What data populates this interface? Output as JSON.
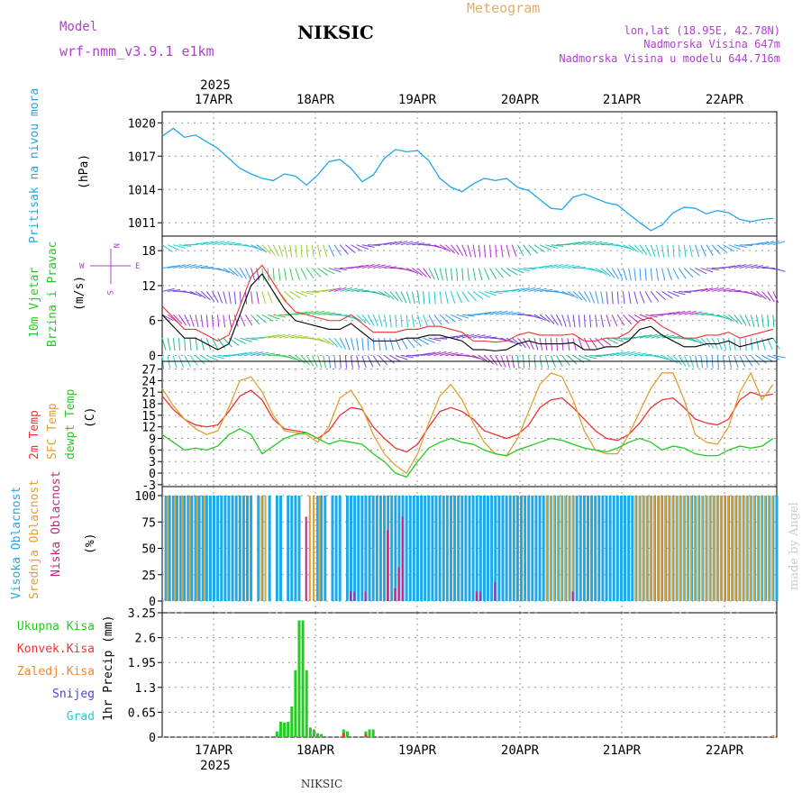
{
  "header": {
    "model_label": "Model",
    "model_name": "wrf-nmm_v3.9.1 e1km",
    "station": "NIKSIC",
    "chart_title": "Meteogram",
    "coords": "lon,lat (18.95E, 42.78N)",
    "elevation": "Nadmorska Visina 647m",
    "model_elevation": "Nadmorska Visina u modelu 644.716m",
    "footer_station": "NIKSIC",
    "watermark": "made by Angel"
  },
  "colors": {
    "pressure": "#1ea8e8",
    "wind_green": "#22cc22",
    "t2m": "#ee3333",
    "tsfc": "#e0a030",
    "dewpt": "#22cc22",
    "cloud_high": "#1ea8e8",
    "cloud_mid": "#e0a030",
    "cloud_low": "#cc2288",
    "precip_total": "#22cc22",
    "precip_conv": "#ee3333",
    "precip_frozen": "#ee8833",
    "snow": "#4444ee",
    "hail": "#22cccc",
    "model_purple": "#b040d0"
  },
  "time_axis": {
    "year": "2025",
    "days": [
      "17APR",
      "18APR",
      "19APR",
      "20APR",
      "21APR",
      "22APR"
    ]
  },
  "panels": {
    "pressure": {
      "label": "Pritisak na nivou mora",
      "unit": "(hPa)",
      "ticks": [
        "1020",
        "1017",
        "1014",
        "1011"
      ]
    },
    "wind": {
      "label1": "10m Vjetar",
      "label2": "Brzina i Pravac",
      "unit": "(m/s)",
      "ticks": [
        "18",
        "12",
        "6",
        "0"
      ],
      "compass": {
        "n": "N",
        "s": "S",
        "e": "E",
        "w": "W"
      }
    },
    "temp": {
      "label1": "2m Temp",
      "label2": "SFC Temp",
      "label3": "dewpt Temp",
      "unit": "(C)",
      "ticks": [
        "27",
        "24",
        "21",
        "18",
        "15",
        "12",
        "9",
        "6",
        "3",
        "0",
        "-3"
      ]
    },
    "cloud": {
      "label1": "Visoka Oblacnost",
      "label2": "Srednja Oblacnost",
      "label3": "Niska Oblacnost",
      "unit": "(%)",
      "ticks": [
        "100",
        "75",
        "50",
        "25",
        "0"
      ]
    },
    "precip": {
      "unit": "1hr Precip (mm)",
      "ticks": [
        "3.25",
        "2.6",
        "1.95",
        "1.3",
        "0.65",
        "0"
      ],
      "legend": [
        "Ukupna Kisa",
        "Konvek.Kisa",
        "Zaledj.Kisa",
        "Snijeg",
        "Grad"
      ]
    }
  },
  "chart_data": [
    {
      "type": "line",
      "title": "Pritisak na nivou mora",
      "ylabel": "(hPa)",
      "ylim": [
        1009.8,
        1021
      ],
      "x_hours": [
        0,
        3,
        6,
        9,
        12,
        15,
        18,
        21,
        24,
        27,
        30,
        33,
        36,
        39,
        42,
        45,
        48,
        51,
        54,
        57,
        60,
        63,
        66,
        69,
        72,
        75,
        78,
        81,
        84,
        87,
        90,
        93,
        96,
        99,
        102,
        105,
        108,
        111,
        114,
        117,
        120,
        123,
        126,
        129,
        132,
        135,
        138,
        141,
        144,
        147,
        150,
        153,
        156,
        159,
        162,
        165
      ],
      "values": [
        1018.8,
        1019.5,
        1018.7,
        1018.9,
        1018.3,
        1017.7,
        1016.8,
        1015.9,
        1015.4,
        1015,
        1014.8,
        1015.4,
        1015.2,
        1014.4,
        1015.3,
        1016.5,
        1016.7,
        1015.9,
        1014.7,
        1015.3,
        1016.8,
        1017.6,
        1017.4,
        1017.5,
        1016.6,
        1015,
        1014.2,
        1013.8,
        1014.5,
        1015,
        1014.8,
        1015,
        1014.2,
        1013.9,
        1013.1,
        1012.3,
        1012.2,
        1013.3,
        1013.6,
        1013.2,
        1012.8,
        1012.6,
        1011.8,
        1011,
        1010.3,
        1010.8,
        1011.9,
        1012.4,
        1012.3,
        1011.8,
        1012.1,
        1011.9,
        1011.3,
        1011.1,
        1011.3,
        1011.4
      ]
    },
    {
      "type": "line",
      "title": "10m Vjetar Brzina i Pravac",
      "ylabel": "(m/s)",
      "ylim": [
        -1,
        20.5
      ],
      "x_hours": [
        0,
        3,
        6,
        9,
        12,
        15,
        18,
        21,
        24,
        27,
        30,
        33,
        36,
        39,
        42,
        45,
        48,
        51,
        54,
        57,
        60,
        63,
        66,
        69,
        72,
        75,
        78,
        81,
        84,
        87,
        90,
        93,
        96,
        99,
        102,
        105,
        108,
        111,
        114,
        117,
        120,
        123,
        126,
        129,
        132,
        135,
        138,
        141,
        144,
        147,
        150,
        153,
        156,
        159,
        162,
        165
      ],
      "values": [
        7,
        5,
        3,
        3,
        2,
        1,
        2,
        7,
        12,
        14,
        11,
        8,
        6,
        5.5,
        5,
        4.5,
        4.5,
        5.5,
        4,
        2.5,
        2.5,
        2.5,
        3,
        3,
        3.5,
        3.5,
        3,
        2.5,
        1,
        1,
        0.8,
        1,
        2,
        2.5,
        2,
        2,
        2,
        2.2,
        1,
        1,
        1.5,
        1.5,
        2.5,
        4.5,
        5,
        3.5,
        2.5,
        1.5,
        1.5,
        2,
        2,
        2.5,
        1.5,
        2,
        2.5,
        3
      ]
    },
    {
      "type": "line",
      "title": "Temperatura",
      "ylabel": "(C)",
      "ylim": [
        -3.5,
        29
      ],
      "x_hours": [
        0,
        3,
        6,
        9,
        12,
        15,
        18,
        21,
        24,
        27,
        30,
        33,
        36,
        39,
        42,
        45,
        48,
        51,
        54,
        57,
        60,
        63,
        66,
        69,
        72,
        75,
        78,
        81,
        84,
        87,
        90,
        93,
        96,
        99,
        102,
        105,
        108,
        111,
        114,
        117,
        120,
        123,
        126,
        129,
        132,
        135,
        138,
        141,
        144,
        147,
        150,
        153,
        156,
        159,
        162,
        165
      ],
      "series": [
        {
          "name": "2m Temp",
          "values": [
            20,
            16.5,
            14,
            12.5,
            12,
            12.5,
            16,
            20,
            21.5,
            19,
            14,
            11.5,
            11,
            10.5,
            9,
            11,
            15,
            17,
            16.5,
            12,
            9,
            6.5,
            5.5,
            7.5,
            12,
            16,
            17,
            16,
            14,
            11,
            10,
            9,
            10,
            12.5,
            17,
            19,
            19.5,
            17,
            14,
            11,
            9,
            8.5,
            10,
            13,
            17,
            19,
            19.5,
            17,
            14,
            13,
            12.5,
            14,
            19,
            21,
            20,
            20.5
          ]
        },
        {
          "name": "SFC Temp",
          "values": [
            22,
            17.5,
            14,
            11.5,
            10,
            11,
            17,
            24,
            25,
            21,
            15,
            11,
            10.5,
            10,
            8,
            12,
            19.5,
            21.5,
            17,
            10,
            5,
            2,
            0,
            5,
            13,
            20,
            23,
            19,
            13,
            8,
            5,
            4.5,
            9,
            16,
            23,
            26,
            25,
            19,
            11,
            6,
            5,
            5,
            10,
            16,
            22,
            26,
            26,
            19,
            10,
            8,
            7.5,
            12,
            21,
            26,
            19,
            23
          ]
        },
        {
          "name": "dewpt Temp",
          "values": [
            10,
            8,
            6,
            6.5,
            6,
            7,
            10,
            11.5,
            10,
            5,
            7,
            9,
            10,
            10.5,
            9,
            7.5,
            8.5,
            8,
            7.5,
            5,
            3,
            0,
            -1,
            3,
            6.5,
            8,
            9,
            8,
            7.5,
            6,
            5,
            4.5,
            6,
            7,
            8,
            9,
            8.5,
            7.5,
            6.5,
            6,
            5.5,
            6.5,
            8,
            9,
            8,
            6,
            7,
            6.5,
            5,
            4.5,
            4.5,
            6,
            7,
            6.5,
            7,
            9
          ]
        }
      ]
    },
    {
      "type": "bar",
      "title": "Oblacnost",
      "ylabel": "(%)",
      "ylim": [
        0,
        100
      ],
      "series": [
        {
          "name": "Visoka Oblacnost",
          "x_hours": [
            1,
            2,
            3,
            4,
            5,
            6,
            7,
            8,
            9,
            10,
            11,
            12,
            13,
            14,
            15,
            16,
            17,
            18,
            19,
            20,
            21,
            22,
            23,
            24,
            26,
            27,
            29,
            31,
            32,
            34,
            35,
            36,
            37,
            42,
            43,
            44,
            46,
            47,
            48,
            50,
            51,
            52,
            53,
            54,
            55,
            56,
            57,
            58,
            59,
            60,
            61,
            62,
            63,
            64,
            65,
            66,
            67,
            68,
            69,
            70,
            71,
            72,
            73,
            74,
            75,
            76,
            77,
            78,
            79,
            80,
            81,
            82,
            83,
            84,
            85,
            86,
            87,
            88,
            89,
            90,
            91,
            92,
            93,
            94,
            95,
            96,
            97,
            98,
            99,
            100,
            101,
            102,
            103,
            104,
            105,
            106,
            107,
            108,
            109,
            110,
            111,
            112,
            113,
            114,
            115,
            116,
            117,
            118,
            119,
            120,
            121,
            122,
            123,
            124,
            125,
            126,
            127,
            128,
            129,
            130,
            131,
            132,
            133,
            134,
            135,
            136,
            137,
            138,
            139,
            140,
            141,
            142,
            143,
            144,
            145,
            146,
            147,
            148,
            149,
            150,
            151,
            152,
            153,
            154,
            155,
            156,
            157,
            158,
            159,
            160,
            161,
            162,
            163,
            164,
            165,
            166
          ],
          "values": [
            100,
            100,
            100,
            100,
            100,
            100,
            100,
            100,
            100,
            100,
            100,
            100,
            100,
            100,
            100,
            100,
            100,
            100,
            100,
            100,
            100,
            100,
            100,
            100,
            100,
            100,
            100,
            100,
            100,
            100,
            100,
            100,
            100,
            100,
            100,
            100,
            100,
            100,
            100,
            100,
            100,
            100,
            100,
            100,
            100,
            100,
            100,
            100,
            100,
            100,
            100,
            100,
            100,
            100,
            100,
            100,
            100,
            100,
            100,
            100,
            100,
            100,
            100,
            100,
            100,
            100,
            100,
            100,
            100,
            100,
            100,
            100,
            100,
            100,
            100,
            100,
            100,
            100,
            100,
            100,
            100,
            100,
            100,
            100,
            100,
            100,
            100,
            100,
            100,
            100,
            100,
            100,
            100,
            100,
            100,
            100,
            100,
            100,
            100,
            100,
            100,
            100,
            100,
            100,
            100,
            100,
            100,
            100,
            100,
            100,
            100,
            100,
            100,
            100,
            100,
            100,
            100,
            100,
            100,
            100,
            100,
            100,
            100,
            100,
            100,
            100,
            100,
            100,
            100,
            100,
            100,
            100,
            100,
            100,
            100,
            100,
            100,
            100,
            100,
            100,
            100,
            100,
            100,
            100,
            100,
            100,
            100,
            100,
            100,
            100,
            100,
            100,
            100,
            100,
            100,
            100
          ]
        },
        {
          "name": "Srednja Oblacnost",
          "x_hours": [
            1.5,
            3.5,
            5.5,
            7.5,
            9.5,
            11.5,
            27,
            28,
            40,
            41,
            42.5,
            104,
            105,
            106,
            107,
            108,
            109,
            110,
            111,
            128,
            129,
            130,
            131,
            132,
            133,
            134,
            135,
            136,
            137,
            138,
            139,
            140,
            141,
            142,
            143,
            144,
            145,
            146,
            147,
            148,
            149,
            150,
            151,
            152,
            153,
            154,
            155,
            156,
            157,
            158,
            159,
            160,
            161,
            162,
            163,
            164,
            165
          ],
          "values": [
            100,
            100,
            100,
            100,
            100,
            100,
            100,
            100,
            100,
            100,
            100,
            100,
            100,
            100,
            100,
            100,
            100,
            100,
            100,
            100,
            100,
            100,
            100,
            100,
            100,
            100,
            100,
            100,
            100,
            100,
            100,
            100,
            100,
            100,
            100,
            100,
            100,
            100,
            100,
            100,
            100,
            100,
            100,
            100,
            100,
            100,
            100,
            100,
            100,
            100,
            100,
            100,
            100,
            100,
            100,
            100,
            100
          ]
        },
        {
          "name": "Niska Oblacnost",
          "x_hours": [
            39,
            51,
            52,
            55,
            61,
            63,
            64,
            65,
            85,
            86,
            90,
            111
          ],
          "values": [
            80,
            9,
            9,
            9,
            67,
            12,
            32,
            80,
            9,
            9,
            18,
            9
          ]
        }
      ]
    },
    {
      "type": "bar",
      "title": "1hr Precip",
      "ylabel": "1hr Precip (mm)",
      "ylim": [
        0,
        3.25
      ],
      "series": [
        {
          "name": "Ukupna Kisa",
          "x_hours": [
            31,
            32,
            33,
            34,
            35,
            36,
            37,
            38,
            39,
            40,
            41,
            42,
            43,
            49,
            50,
            55,
            56,
            57
          ],
          "values": [
            0.15,
            0.4,
            0.38,
            0.4,
            0.8,
            1.75,
            3.05,
            3.05,
            1.75,
            0.25,
            0.2,
            0.1,
            0.08,
            0.2,
            0.15,
            0.15,
            0.2,
            0.2
          ]
        },
        {
          "name": "Konvek.Kisa",
          "x_hours": [
            49,
            55
          ],
          "values": [
            0.1,
            0.08
          ]
        },
        {
          "name": "Zaledj.Kisa",
          "x_hours": [
            165
          ],
          "values": [
            0.05
          ]
        }
      ]
    }
  ]
}
